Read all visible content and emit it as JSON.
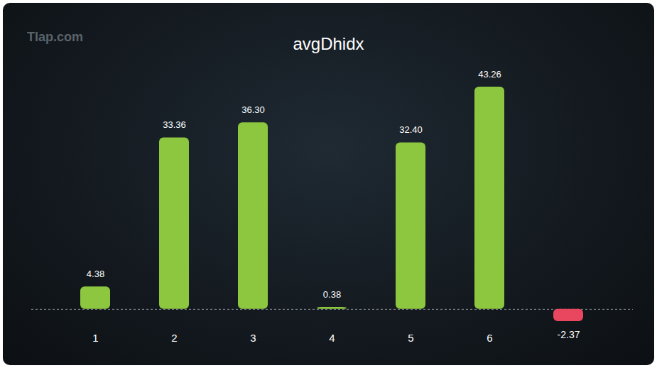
{
  "chart_data": {
    "type": "bar",
    "title": "avgDhidx",
    "annotations": [
      {
        "text": "Tlap.com"
      }
    ],
    "categories": [
      "1",
      "2",
      "3",
      "4",
      "5",
      "6",
      null
    ],
    "values": [
      4.38,
      33.36,
      36.3,
      0.38,
      32.4,
      43.26,
      -2.37
    ],
    "value_labels": [
      "4.38",
      "33.36",
      "36.30",
      "0.38",
      "32.40",
      "43.26",
      "-2.37"
    ],
    "colors": [
      "#8dc63f",
      "#8dc63f",
      "#8dc63f",
      "#8dc63f",
      "#8dc63f",
      "#8dc63f",
      "#e8475f"
    ],
    "data_labels": true,
    "tick_labels": "x"
  }
}
